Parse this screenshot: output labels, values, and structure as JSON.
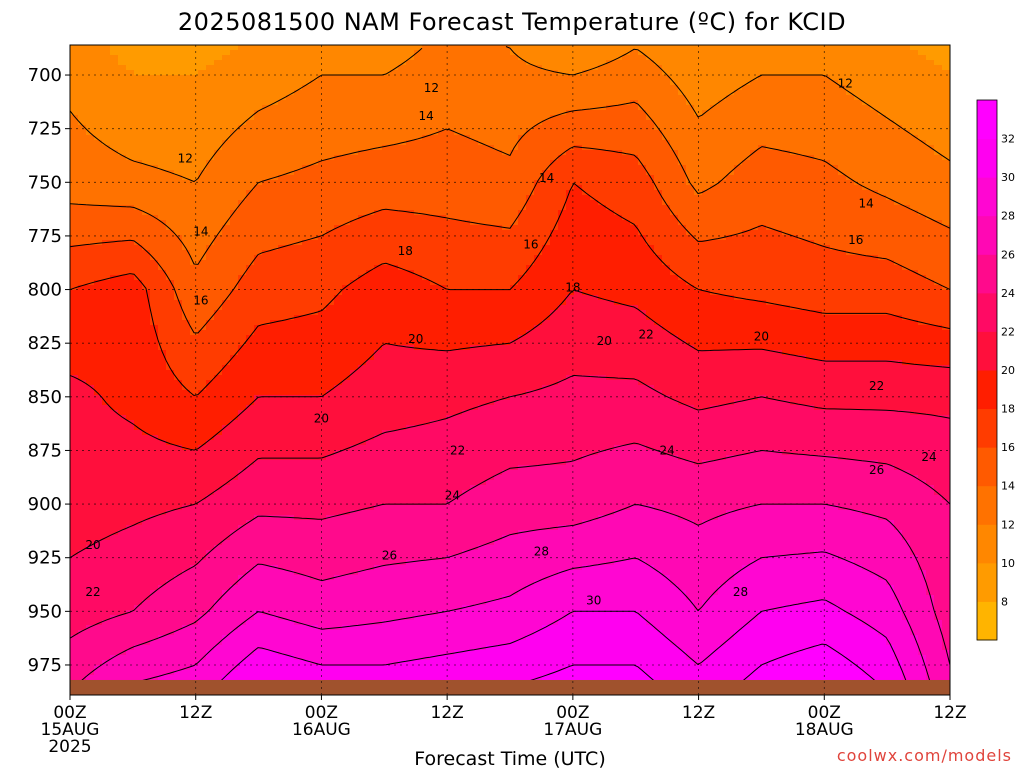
{
  "chart_data": {
    "type": "heatmap",
    "title": "2025081500 NAM Forecast Temperature (ºC) for KCID",
    "xlabel": "Forecast Time (UTC)",
    "ylabel": "",
    "x_ticks": [
      {
        "hour": 0,
        "label": "00Z",
        "sub": "15AUG",
        "sub2": "2025"
      },
      {
        "hour": 12,
        "label": "12Z",
        "sub": "",
        "sub2": ""
      },
      {
        "hour": 24,
        "label": "00Z",
        "sub": "16AUG",
        "sub2": ""
      },
      {
        "hour": 36,
        "label": "12Z",
        "sub": "",
        "sub2": ""
      },
      {
        "hour": 48,
        "label": "00Z",
        "sub": "17AUG",
        "sub2": ""
      },
      {
        "hour": 60,
        "label": "12Z",
        "sub": "",
        "sub2": ""
      },
      {
        "hour": 72,
        "label": "00Z",
        "sub": "18AUG",
        "sub2": ""
      },
      {
        "hour": 84,
        "label": "12Z",
        "sub": "",
        "sub2": ""
      }
    ],
    "xlim": [
      0,
      84
    ],
    "ylim": [
      989,
      686
    ],
    "y_ticks": [
      700,
      725,
      750,
      775,
      800,
      825,
      850,
      875,
      900,
      925,
      950,
      975
    ],
    "y_tick_labels": [
      "700",
      "725",
      "750",
      "775",
      "800",
      "825",
      "850",
      "875",
      "900",
      "925",
      "950",
      "975"
    ],
    "surface_pressure_hpa": 982,
    "grid": true,
    "colorbar": {
      "levels": [
        8,
        10,
        12,
        14,
        16,
        18,
        20,
        22,
        24,
        26,
        28,
        30,
        32
      ],
      "labels": [
        "8",
        "10",
        "12",
        "14",
        "16",
        "18",
        "20",
        "22",
        "24",
        "26",
        "28",
        "30",
        "32"
      ],
      "colors": [
        "#ffb400",
        "#ff9b00",
        "#ff8700",
        "#ff7200",
        "#ff5a00",
        "#ff3c00",
        "#ff1e00",
        "#ff0f3c",
        "#ff0a64",
        "#ff0a8c",
        "#ff08b4",
        "#ff06d2",
        "#ff00f0",
        "#ff00ff"
      ]
    },
    "hours": [
      0,
      6,
      12,
      18,
      24,
      30,
      36,
      42,
      48,
      54,
      60,
      66,
      72,
      78,
      84
    ],
    "profiles": [
      {
        "hour": 0,
        "levels": [
          [
            700,
            11.5
          ],
          [
            750,
            13
          ],
          [
            800,
            18
          ],
          [
            850,
            20.5
          ],
          [
            900,
            21
          ],
          [
            950,
            23
          ],
          [
            975,
            25
          ]
        ]
      },
      {
        "hour": 6,
        "levels": [
          [
            700,
            10
          ],
          [
            750,
            12.5
          ],
          [
            800,
            19
          ],
          [
            850,
            19.5
          ],
          [
            900,
            21.5
          ],
          [
            950,
            24
          ],
          [
            975,
            27
          ]
        ]
      },
      {
        "hour": 12,
        "levels": [
          [
            700,
            10
          ],
          [
            750,
            12
          ],
          [
            800,
            14.5
          ],
          [
            850,
            18
          ],
          [
            900,
            22
          ],
          [
            950,
            25.5
          ],
          [
            975,
            28
          ]
        ]
      },
      {
        "hour": 18,
        "levels": [
          [
            700,
            11
          ],
          [
            750,
            14
          ],
          [
            800,
            17
          ],
          [
            850,
            20
          ],
          [
            900,
            23.5
          ],
          [
            950,
            28
          ],
          [
            975,
            31
          ]
        ]
      },
      {
        "hour": 24,
        "levels": [
          [
            700,
            12
          ],
          [
            750,
            14.5
          ],
          [
            800,
            17.5
          ],
          [
            850,
            20
          ],
          [
            900,
            23.5
          ],
          [
            950,
            27
          ],
          [
            975,
            30
          ]
        ]
      },
      {
        "hour": 30,
        "levels": [
          [
            700,
            12
          ],
          [
            750,
            15
          ],
          [
            800,
            19
          ],
          [
            850,
            21
          ],
          [
            900,
            24
          ],
          [
            950,
            27.5
          ],
          [
            975,
            30
          ]
        ]
      },
      {
        "hour": 36,
        "levels": [
          [
            700,
            13
          ],
          [
            750,
            15
          ],
          [
            800,
            18
          ],
          [
            850,
            21.5
          ],
          [
            900,
            24
          ],
          [
            950,
            28
          ],
          [
            975,
            30.5
          ]
        ]
      },
      {
        "hour": 42,
        "levels": [
          [
            700,
            12.5
          ],
          [
            750,
            14.5
          ],
          [
            800,
            18
          ],
          [
            850,
            22
          ],
          [
            900,
            25
          ],
          [
            950,
            28.5
          ],
          [
            975,
            31
          ]
        ]
      },
      {
        "hour": 48,
        "levels": [
          [
            700,
            12
          ],
          [
            750,
            18
          ],
          [
            800,
            20
          ],
          [
            850,
            22.5
          ],
          [
            900,
            25
          ],
          [
            950,
            30
          ],
          [
            975,
            32
          ]
        ]
      },
      {
        "hour": 54,
        "levels": [
          [
            700,
            13
          ],
          [
            750,
            17
          ],
          [
            800,
            19.5
          ],
          [
            850,
            22.5
          ],
          [
            900,
            26
          ],
          [
            950,
            30
          ],
          [
            975,
            32
          ]
        ]
      },
      {
        "hour": 60,
        "levels": [
          [
            700,
            11
          ],
          [
            750,
            13.5
          ],
          [
            800,
            18
          ],
          [
            850,
            21.5
          ],
          [
            900,
            25.5
          ],
          [
            950,
            28
          ],
          [
            975,
            30
          ]
        ]
      },
      {
        "hour": 66,
        "levels": [
          [
            700,
            12
          ],
          [
            750,
            15
          ],
          [
            800,
            17.5
          ],
          [
            850,
            22
          ],
          [
            900,
            26
          ],
          [
            950,
            30
          ],
          [
            975,
            32
          ]
        ]
      },
      {
        "hour": 72,
        "levels": [
          [
            700,
            12
          ],
          [
            750,
            14.5
          ],
          [
            800,
            17
          ],
          [
            850,
            21.5
          ],
          [
            900,
            26
          ],
          [
            950,
            30.5
          ],
          [
            975,
            33
          ]
        ]
      },
      {
        "hour": 78,
        "levels": [
          [
            700,
            11
          ],
          [
            750,
            13.5
          ],
          [
            800,
            17
          ],
          [
            850,
            21.5
          ],
          [
            900,
            25.5
          ],
          [
            950,
            29
          ],
          [
            975,
            31
          ]
        ]
      },
      {
        "hour": 84,
        "levels": [
          [
            700,
            10
          ],
          [
            750,
            12.5
          ],
          [
            800,
            16
          ],
          [
            850,
            21.5
          ],
          [
            900,
            24
          ],
          [
            950,
            25
          ],
          [
            975,
            26
          ]
        ]
      }
    ],
    "contour_labels": [
      {
        "hour": 11,
        "p": 739,
        "text": "12"
      },
      {
        "hour": 34.5,
        "p": 706,
        "text": "12"
      },
      {
        "hour": 74,
        "p": 704,
        "text": "12"
      },
      {
        "hour": 12.5,
        "p": 773,
        "text": "14"
      },
      {
        "hour": 34,
        "p": 719,
        "text": "14"
      },
      {
        "hour": 45.5,
        "p": 748,
        "text": "14"
      },
      {
        "hour": 76,
        "p": 760,
        "text": "14"
      },
      {
        "hour": 12.5,
        "p": 805,
        "text": "16"
      },
      {
        "hour": 44,
        "p": 779,
        "text": "16"
      },
      {
        "hour": 75,
        "p": 777,
        "text": "16"
      },
      {
        "hour": 32,
        "p": 782,
        "text": "18"
      },
      {
        "hour": 48,
        "p": 799,
        "text": "18"
      },
      {
        "hour": 24,
        "p": 860,
        "text": "20"
      },
      {
        "hour": 33,
        "p": 823,
        "text": "20"
      },
      {
        "hour": 51,
        "p": 824,
        "text": "20"
      },
      {
        "hour": 66,
        "p": 822,
        "text": "20"
      },
      {
        "hour": 55,
        "p": 821,
        "text": "22"
      },
      {
        "hour": 37,
        "p": 875,
        "text": "22"
      },
      {
        "hour": 77,
        "p": 845,
        "text": "22"
      },
      {
        "hour": 57,
        "p": 875,
        "text": "24"
      },
      {
        "hour": 36.5,
        "p": 896,
        "text": "24"
      },
      {
        "hour": 82,
        "p": 878,
        "text": "24"
      },
      {
        "hour": 30.5,
        "p": 924,
        "text": "26"
      },
      {
        "hour": 77,
        "p": 884,
        "text": "26"
      },
      {
        "hour": 45,
        "p": 922,
        "text": "28"
      },
      {
        "hour": 64,
        "p": 941,
        "text": "28"
      },
      {
        "hour": 50,
        "p": 945,
        "text": "30"
      },
      {
        "hour": 2.2,
        "p": 919,
        "text": "20"
      },
      {
        "hour": 2.2,
        "p": 941,
        "text": "22"
      }
    ]
  },
  "credit": "coolwx.com/models"
}
